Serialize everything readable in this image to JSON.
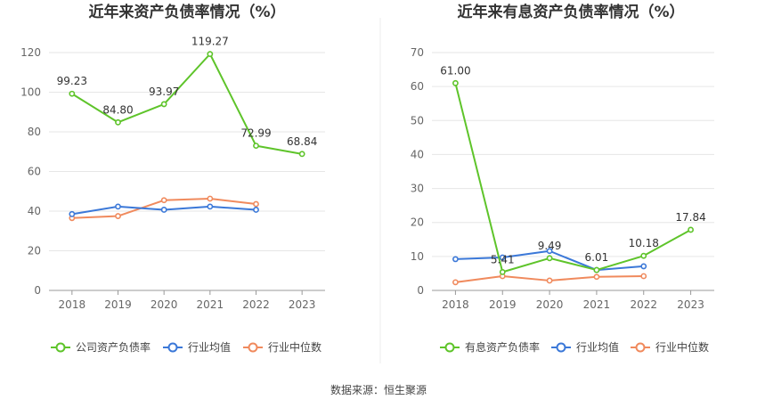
{
  "colors": {
    "company": "#5ec42a",
    "industry_avg": "#3b78d8",
    "industry_median": "#f08a5d",
    "grid": "#e6e6e6",
    "divider": "#ececec"
  },
  "chart_data": [
    {
      "type": "line",
      "title": "近年来资产负债率情况（%）",
      "x": [
        "2018",
        "2019",
        "2020",
        "2021",
        "2022",
        "2023"
      ],
      "yticks": [
        "0",
        "20",
        "40",
        "60",
        "80",
        "100",
        "120"
      ],
      "ylim": [
        0,
        120
      ],
      "grid": true,
      "legend_position": "bottom",
      "series": [
        {
          "name": "公司资产负债率",
          "color_key": "company",
          "values": [
            99.23,
            84.8,
            93.97,
            119.27,
            72.99,
            68.84
          ],
          "labels": [
            "99.23",
            "84.80",
            "93.97",
            "119.27",
            "72.99",
            "68.84"
          ]
        },
        {
          "name": "行业均值",
          "color_key": "industry_avg",
          "values": [
            38.5,
            42.3,
            40.7,
            42.3,
            40.7,
            null
          ]
        },
        {
          "name": "行业中位数",
          "color_key": "industry_median",
          "values": [
            36.5,
            37.5,
            45.5,
            46.3,
            43.6,
            null
          ]
        }
      ]
    },
    {
      "type": "line",
      "title": "近年来有息资产负债率情况（%）",
      "x": [
        "2018",
        "2019",
        "2020",
        "2021",
        "2022",
        "2023"
      ],
      "yticks": [
        "0",
        "10",
        "20",
        "30",
        "40",
        "50",
        "60",
        "70"
      ],
      "ylim": [
        0,
        70
      ],
      "grid": true,
      "legend_position": "bottom",
      "series": [
        {
          "name": "有息资产负债率",
          "color_key": "company",
          "values": [
            61.0,
            5.41,
            9.49,
            6.01,
            10.18,
            17.84
          ],
          "labels": [
            "61.00",
            "5.41",
            "9.49",
            "6.01",
            "10.18",
            "17.84"
          ]
        },
        {
          "name": "行业均值",
          "color_key": "industry_avg",
          "values": [
            9.2,
            9.7,
            11.6,
            6.0,
            7.1,
            null
          ]
        },
        {
          "name": "行业中位数",
          "color_key": "industry_median",
          "values": [
            2.4,
            4.2,
            2.9,
            4.0,
            4.2,
            null
          ]
        }
      ]
    }
  ],
  "footer": {
    "source": "数据来源：恒生聚源"
  }
}
